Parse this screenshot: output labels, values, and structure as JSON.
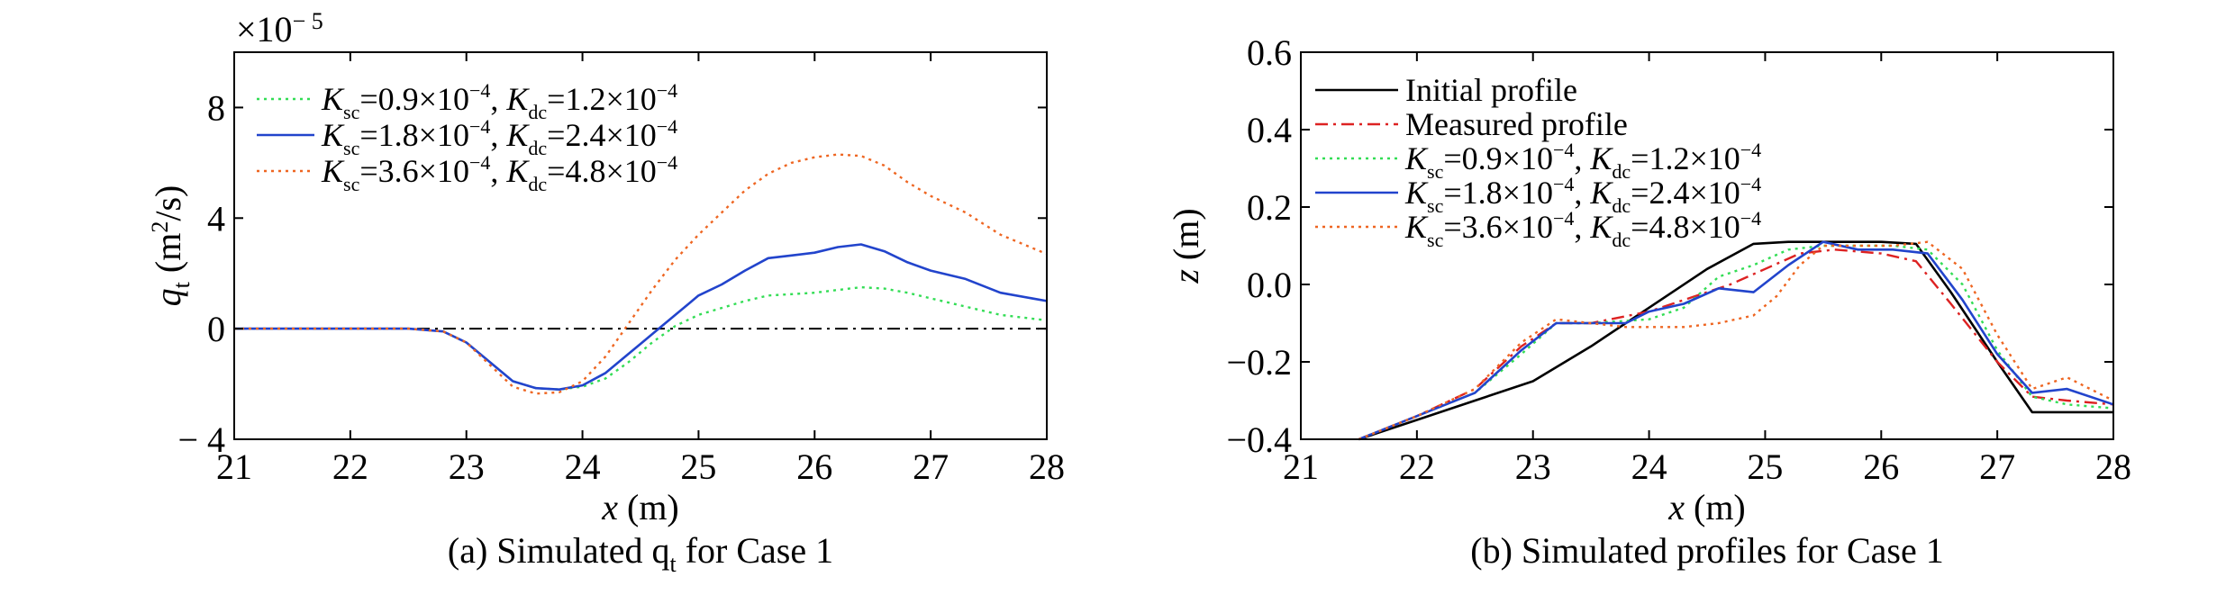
{
  "chart_data": [
    {
      "type": "line",
      "caption": "(a) Simulated q",
      "caption_sub": "t",
      "caption_rest": " for Case 1",
      "xlabel_var": "x",
      "xlabel_unit": " (m)",
      "ylabel_var": "q",
      "ylabel_sub": "t",
      "ylabel_unit": " (m",
      "ylabel_sup": "2",
      "ylabel_unit_end": "/s)",
      "multiplier": "×10",
      "multiplier_exp": "− 5",
      "xlim": [
        21,
        28
      ],
      "ylim": [
        -4,
        10
      ],
      "xticks": [
        21,
        22,
        23,
        24,
        25,
        26,
        27,
        28
      ],
      "yticks": [
        -4,
        0,
        4,
        8
      ],
      "ytick_labels": [
        "− 4",
        "0",
        "4",
        "8"
      ],
      "zero_line": true,
      "series": [
        {
          "name": "K_sc=0.9×10^-4, K_dc=1.2×10^-4",
          "style": "dotted",
          "color": "#33dd55",
          "x": [
            21,
            22,
            22.5,
            22.8,
            23.0,
            23.2,
            23.4,
            23.6,
            23.8,
            24.0,
            24.2,
            24.4,
            24.6,
            24.8,
            25.0,
            25.2,
            25.4,
            25.6,
            25.8,
            26.0,
            26.2,
            26.4,
            26.6,
            26.8,
            27.0,
            27.3,
            27.6,
            28.0
          ],
          "y": [
            0,
            0,
            0,
            -0.1,
            -0.5,
            -1.2,
            -1.9,
            -2.15,
            -2.2,
            -2.1,
            -1.8,
            -1.2,
            -0.5,
            0.1,
            0.5,
            0.75,
            1.0,
            1.2,
            1.25,
            1.3,
            1.4,
            1.5,
            1.45,
            1.3,
            1.1,
            0.8,
            0.5,
            0.3
          ]
        },
        {
          "name": "K_sc=1.8×10^-4, K_dc=2.4×10^-4",
          "style": "solid",
          "color": "#2244cc",
          "x": [
            21,
            22,
            22.5,
            22.8,
            23.0,
            23.2,
            23.4,
            23.6,
            23.8,
            24.0,
            24.2,
            24.4,
            24.6,
            24.8,
            25.0,
            25.2,
            25.4,
            25.6,
            25.8,
            26.0,
            26.2,
            26.4,
            26.6,
            26.8,
            27.0,
            27.3,
            27.6,
            28.0
          ],
          "y": [
            0,
            0,
            0,
            -0.1,
            -0.5,
            -1.2,
            -1.9,
            -2.15,
            -2.2,
            -2.05,
            -1.6,
            -0.9,
            -0.2,
            0.5,
            1.2,
            1.6,
            2.1,
            2.55,
            2.65,
            2.75,
            2.95,
            3.05,
            2.8,
            2.4,
            2.1,
            1.8,
            1.3,
            1.0
          ]
        },
        {
          "name": "K_sc=3.6×10^-4, K_dc=4.8×10^-4",
          "style": "dotted",
          "color": "#ee6622",
          "x": [
            21,
            22,
            22.5,
            22.8,
            23.0,
            23.2,
            23.4,
            23.6,
            23.8,
            24.0,
            24.2,
            24.4,
            24.6,
            24.8,
            25.0,
            25.2,
            25.4,
            25.6,
            25.8,
            26.0,
            26.2,
            26.4,
            26.6,
            26.8,
            27.0,
            27.3,
            27.6,
            28.0
          ],
          "y": [
            0,
            0,
            0,
            -0.1,
            -0.5,
            -1.3,
            -2.1,
            -2.35,
            -2.3,
            -1.9,
            -1.0,
            0.2,
            1.4,
            2.5,
            3.4,
            4.2,
            5.0,
            5.6,
            6.0,
            6.2,
            6.3,
            6.25,
            5.9,
            5.3,
            4.8,
            4.2,
            3.4,
            2.7
          ]
        }
      ],
      "legend": [
        {
          "k1_base": "K",
          "k1_sub": "sc",
          "k1_val": "=0.9×10",
          "k1_exp": "−4",
          "k2_base": "K",
          "k2_sub": "dc",
          "k2_val": "=1.2×10",
          "k2_exp": "−4"
        },
        {
          "k1_base": "K",
          "k1_sub": "sc",
          "k1_val": "=1.8×10",
          "k1_exp": "−4",
          "k2_base": "K",
          "k2_sub": "dc",
          "k2_val": "=2.4×10",
          "k2_exp": "−4"
        },
        {
          "k1_base": "K",
          "k1_sub": "sc",
          "k1_val": "=3.6×10",
          "k1_exp": "−4",
          "k2_base": "K",
          "k2_sub": "dc",
          "k2_val": "=4.8×10",
          "k2_exp": "−4"
        }
      ]
    },
    {
      "type": "line",
      "caption": "(b) Simulated profiles for Case 1",
      "xlabel_var": "x",
      "xlabel_unit": " (m)",
      "ylabel_var": "z",
      "ylabel_unit": " (m)",
      "xlim": [
        21,
        28
      ],
      "ylim": [
        -0.4,
        0.6
      ],
      "xticks": [
        21,
        22,
        23,
        24,
        25,
        26,
        27,
        28
      ],
      "yticks": [
        -0.4,
        -0.2,
        0.0,
        0.2,
        0.4,
        0.6
      ],
      "ytick_labels": [
        "−0.4",
        "−0.2",
        "0.0",
        "0.2",
        "0.4",
        "0.6"
      ],
      "series": [
        {
          "name": "Initial profile",
          "style": "solid",
          "color": "#000000",
          "x": [
            21.5,
            22.0,
            22.5,
            23.0,
            23.5,
            24.0,
            24.5,
            24.9,
            25.2,
            25.5,
            26.0,
            26.3,
            26.6,
            27.0,
            27.3,
            27.6,
            28.0
          ],
          "y": [
            -0.4,
            -0.35,
            -0.3,
            -0.25,
            -0.16,
            -0.06,
            0.04,
            0.105,
            0.11,
            0.11,
            0.11,
            0.105,
            -0.02,
            -0.2,
            -0.33,
            -0.33,
            -0.33
          ]
        },
        {
          "name": "Measured profile",
          "style": "dashdot",
          "color": "#dd2222",
          "x": [
            21.5,
            22.0,
            22.5,
            22.9,
            23.2,
            23.5,
            24.0,
            24.3,
            24.7,
            25.0,
            25.3,
            25.6,
            26.0,
            26.3,
            26.6,
            27.0,
            27.3,
            27.6,
            28.0
          ],
          "y": [
            -0.4,
            -0.34,
            -0.27,
            -0.16,
            -0.1,
            -0.1,
            -0.07,
            -0.04,
            0.0,
            0.04,
            0.08,
            0.09,
            0.08,
            0.06,
            -0.05,
            -0.2,
            -0.29,
            -0.3,
            -0.31
          ]
        },
        {
          "name": "K_sc=0.9×10^-4, K_dc=1.2×10^-4",
          "style": "dotted",
          "color": "#33dd55",
          "x": [
            21.5,
            22.0,
            22.5,
            22.9,
            23.2,
            23.5,
            24.0,
            24.3,
            24.6,
            24.9,
            25.2,
            25.5,
            25.8,
            26.1,
            26.4,
            26.7,
            27.0,
            27.3,
            27.6,
            28.0
          ],
          "y": [
            -0.4,
            -0.34,
            -0.28,
            -0.18,
            -0.1,
            -0.1,
            -0.09,
            -0.06,
            0.02,
            0.05,
            0.09,
            0.1,
            0.1,
            0.1,
            0.09,
            0.0,
            -0.17,
            -0.29,
            -0.31,
            -0.32
          ]
        },
        {
          "name": "K_sc=1.8×10^-4, K_dc=2.4×10^-4",
          "style": "solid",
          "color": "#2244cc",
          "x": [
            21.5,
            22.0,
            22.5,
            22.9,
            23.2,
            23.5,
            23.8,
            24.0,
            24.3,
            24.6,
            24.9,
            25.2,
            25.5,
            25.8,
            26.1,
            26.4,
            26.7,
            27.0,
            27.3,
            27.6,
            28.0
          ],
          "y": [
            -0.4,
            -0.34,
            -0.28,
            -0.17,
            -0.1,
            -0.1,
            -0.1,
            -0.07,
            -0.05,
            -0.01,
            -0.02,
            0.05,
            0.11,
            0.09,
            0.09,
            0.08,
            -0.04,
            -0.18,
            -0.28,
            -0.27,
            -0.31
          ]
        },
        {
          "name": "K_sc=3.6×10^-4, K_dc=4.8×10^-4",
          "style": "dotted",
          "color": "#ee6622",
          "x": [
            21.5,
            22.0,
            22.5,
            22.9,
            23.2,
            23.5,
            23.8,
            24.0,
            24.3,
            24.6,
            24.9,
            25.1,
            25.3,
            25.5,
            25.8,
            26.1,
            26.4,
            26.7,
            27.0,
            27.3,
            27.6,
            28.0
          ],
          "y": [
            -0.4,
            -0.34,
            -0.27,
            -0.15,
            -0.09,
            -0.1,
            -0.11,
            -0.11,
            -0.11,
            -0.1,
            -0.08,
            -0.03,
            0.05,
            0.1,
            0.1,
            0.1,
            0.11,
            0.04,
            -0.13,
            -0.27,
            -0.24,
            -0.3
          ]
        }
      ],
      "legend": [
        {
          "plain": "Initial profile"
        },
        {
          "plain": "Measured profile"
        },
        {
          "k1_base": "K",
          "k1_sub": "sc",
          "k1_val": "=0.9×10",
          "k1_exp": "−4",
          "k2_base": "K",
          "k2_sub": "dc",
          "k2_val": "=1.2×10",
          "k2_exp": "−4"
        },
        {
          "k1_base": "K",
          "k1_sub": "sc",
          "k1_val": "=1.8×10",
          "k1_exp": "−4",
          "k2_base": "K",
          "k2_sub": "dc",
          "k2_val": "=2.4×10",
          "k2_exp": "−4"
        },
        {
          "k1_base": "K",
          "k1_sub": "sc",
          "k1_val": "=3.6×10",
          "k1_exp": "−4",
          "k2_base": "K",
          "k2_sub": "dc",
          "k2_val": "=4.8×10",
          "k2_exp": "−4"
        }
      ]
    }
  ]
}
